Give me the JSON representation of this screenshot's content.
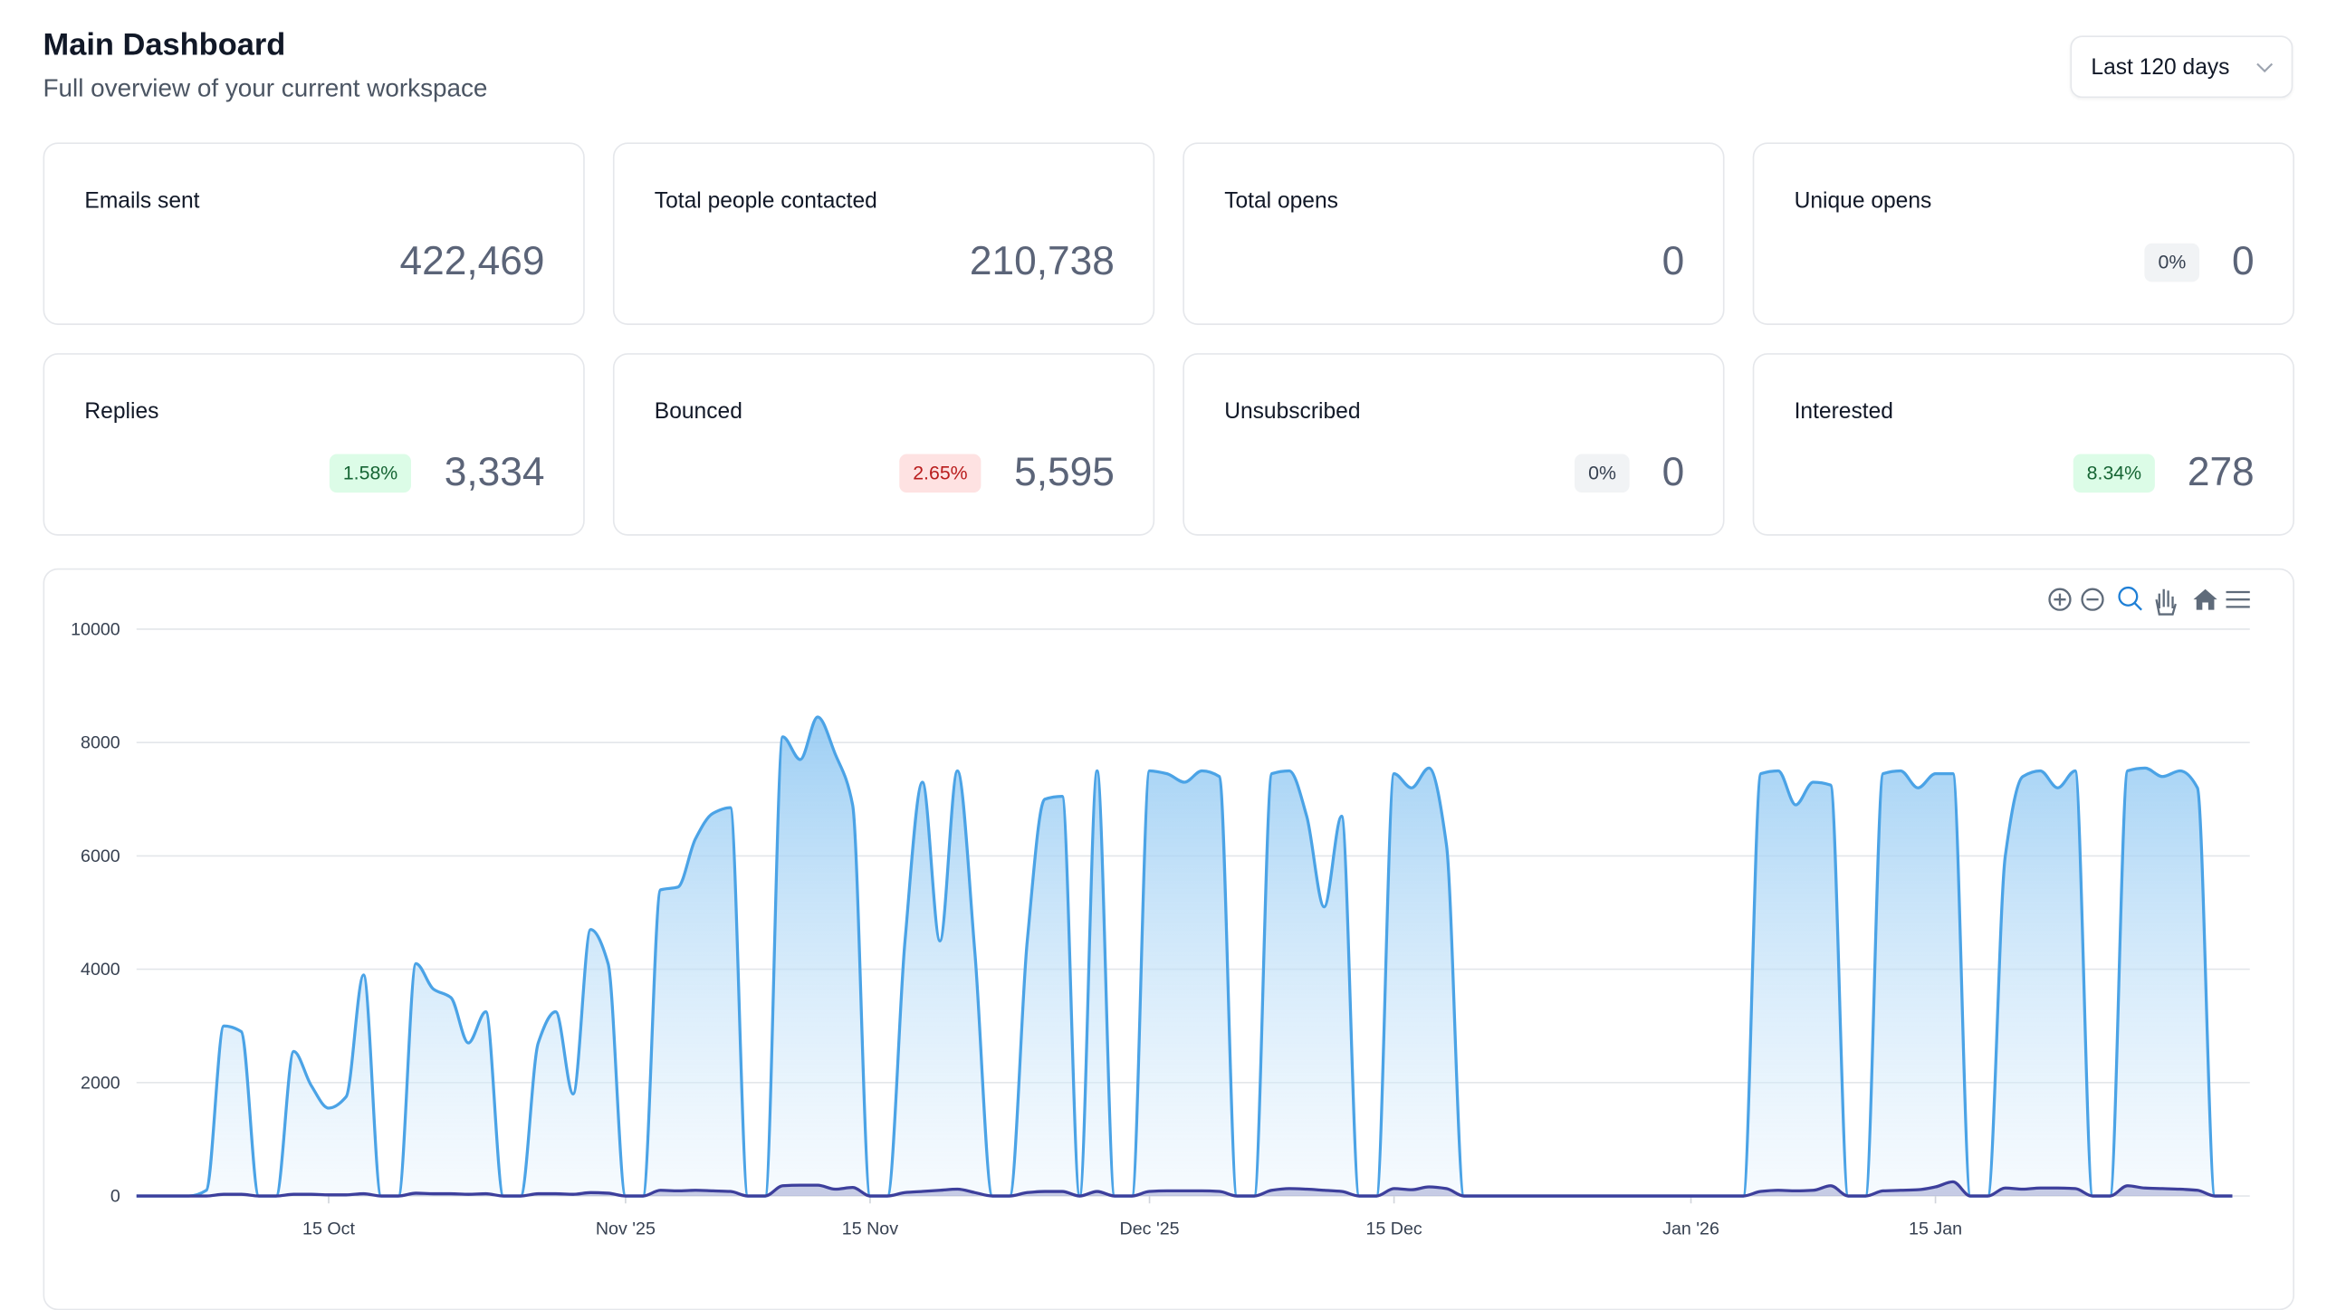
{
  "header": {
    "title": "Main Dashboard",
    "subtitle": "Full overview of your current workspace",
    "range_select": "Last 120 days"
  },
  "cards": [
    {
      "label": "Emails sent",
      "value": "422,469"
    },
    {
      "label": "Total people contacted",
      "value": "210,738"
    },
    {
      "label": "Total opens",
      "value": "0"
    },
    {
      "label": "Unique opens",
      "value": "0",
      "badge": "0%",
      "badge_color": "gray"
    },
    {
      "label": "Replies",
      "value": "3,334",
      "badge": "1.58%",
      "badge_color": "green"
    },
    {
      "label": "Bounced",
      "value": "5,595",
      "badge": "2.65%",
      "badge_color": "red"
    },
    {
      "label": "Unsubscribed",
      "value": "0",
      "badge": "0%",
      "badge_color": "gray"
    },
    {
      "label": "Interested",
      "value": "278",
      "badge": "8.34%",
      "badge_color": "green"
    }
  ],
  "chart_data": {
    "type": "area",
    "x": [
      "2025-10-04",
      "2025-10-05",
      "2025-10-06",
      "2025-10-07",
      "2025-10-08",
      "2025-10-09",
      "2025-10-10",
      "2025-10-11",
      "2025-10-12",
      "2025-10-13",
      "2025-10-14",
      "2025-10-15",
      "2025-10-16",
      "2025-10-17",
      "2025-10-18",
      "2025-10-19",
      "2025-10-20",
      "2025-10-21",
      "2025-10-22",
      "2025-10-23",
      "2025-10-24",
      "2025-10-25",
      "2025-10-26",
      "2025-10-27",
      "2025-10-28",
      "2025-10-29",
      "2025-10-30",
      "2025-10-31",
      "2025-11-01",
      "2025-11-02",
      "2025-11-03",
      "2025-11-04",
      "2025-11-05",
      "2025-11-06",
      "2025-11-07",
      "2025-11-08",
      "2025-11-09",
      "2025-11-10",
      "2025-11-11",
      "2025-11-12",
      "2025-11-13",
      "2025-11-14",
      "2025-11-15",
      "2025-11-16",
      "2025-11-17",
      "2025-11-18",
      "2025-11-19",
      "2025-11-20",
      "2025-11-21",
      "2025-11-22",
      "2025-11-23",
      "2025-11-24",
      "2025-11-25",
      "2025-11-26",
      "2025-11-27",
      "2025-11-28",
      "2025-11-29",
      "2025-11-30",
      "2025-12-01",
      "2025-12-02",
      "2025-12-03",
      "2025-12-04",
      "2025-12-05",
      "2025-12-06",
      "2025-12-07",
      "2025-12-08",
      "2025-12-09",
      "2025-12-10",
      "2025-12-11",
      "2025-12-12",
      "2025-12-13",
      "2025-12-14",
      "2025-12-15",
      "2025-12-16",
      "2025-12-17",
      "2025-12-18",
      "2025-12-19",
      "2025-12-20",
      "2025-12-21",
      "2025-12-22",
      "2025-12-23",
      "2025-12-24",
      "2025-12-25",
      "2025-12-26",
      "2025-12-27",
      "2025-12-28",
      "2025-12-29",
      "2025-12-30",
      "2025-12-31",
      "2026-01-01",
      "2026-01-02",
      "2026-01-03",
      "2026-01-04",
      "2026-01-05",
      "2026-01-06",
      "2026-01-07",
      "2026-01-08",
      "2026-01-09",
      "2026-01-10",
      "2026-01-11",
      "2026-01-12",
      "2026-01-13",
      "2026-01-14",
      "2026-01-15",
      "2026-01-16",
      "2026-01-17",
      "2026-01-18",
      "2026-01-19",
      "2026-01-20",
      "2026-01-21",
      "2026-01-22",
      "2026-01-23",
      "2026-01-24",
      "2026-01-25",
      "2026-01-26",
      "2026-01-27",
      "2026-01-28",
      "2026-01-29",
      "2026-01-30",
      "2026-01-31",
      "2026-02-01"
    ],
    "series": [
      {
        "color": "#4ba3e6",
        "values": [
          0,
          0,
          0,
          0,
          100,
          3000,
          2900,
          0,
          0,
          2550,
          1950,
          1550,
          1750,
          3900,
          0,
          0,
          4100,
          3650,
          3500,
          2700,
          3250,
          0,
          0,
          2700,
          3250,
          1800,
          4700,
          4100,
          0,
          0,
          5400,
          5450,
          6300,
          6750,
          6850,
          0,
          0,
          8100,
          7700,
          8450,
          7800,
          6900,
          0,
          0,
          4500,
          7300,
          4500,
          7500,
          4300,
          0,
          0,
          4500,
          7000,
          7050,
          0,
          7500,
          0,
          0,
          7500,
          7450,
          7300,
          7500,
          7400,
          0,
          0,
          7450,
          7500,
          6700,
          5100,
          6700,
          0,
          0,
          7450,
          7200,
          7550,
          6200,
          0,
          0,
          0,
          0,
          0,
          0,
          0,
          0,
          0,
          0,
          0,
          0,
          0,
          0,
          0,
          0,
          0,
          7450,
          7500,
          6900,
          7300,
          7250,
          0,
          0,
          7450,
          7500,
          7200,
          7450,
          7450,
          0,
          0,
          6000,
          7400,
          7500,
          7200,
          7500,
          0,
          0,
          7500,
          7550,
          7400,
          7500,
          7200,
          0,
          0
        ]
      },
      {
        "color": "#3d3f9c",
        "values": [
          0,
          0,
          0,
          0,
          0,
          30,
          30,
          0,
          0,
          30,
          30,
          20,
          20,
          40,
          0,
          0,
          50,
          40,
          40,
          30,
          40,
          0,
          0,
          40,
          40,
          30,
          60,
          50,
          0,
          0,
          100,
          90,
          100,
          90,
          80,
          0,
          0,
          180,
          190,
          190,
          120,
          150,
          0,
          0,
          60,
          80,
          100,
          120,
          60,
          0,
          0,
          60,
          80,
          80,
          0,
          80,
          0,
          0,
          80,
          90,
          90,
          90,
          80,
          0,
          0,
          100,
          130,
          120,
          100,
          80,
          0,
          0,
          130,
          110,
          160,
          130,
          0,
          0,
          0,
          0,
          0,
          0,
          0,
          0,
          0,
          0,
          0,
          0,
          0,
          0,
          0,
          0,
          0,
          80,
          100,
          90,
          100,
          180,
          0,
          0,
          90,
          100,
          110,
          160,
          250,
          0,
          0,
          140,
          120,
          140,
          140,
          130,
          0,
          0,
          180,
          140,
          130,
          120,
          100,
          0,
          0
        ]
      }
    ],
    "xlim": [
      "2025-10-04",
      "2026-02-02"
    ],
    "xticks": [
      {
        "value": "2025-10-15",
        "label": "15 Oct"
      },
      {
        "value": "2025-11-01",
        "label": "Nov '25"
      },
      {
        "value": "2025-11-15",
        "label": "15 Nov"
      },
      {
        "value": "2025-12-01",
        "label": "Dec '25"
      },
      {
        "value": "2025-12-15",
        "label": "15 Dec"
      },
      {
        "value": "2026-01-01",
        "label": "Jan '26"
      },
      {
        "value": "2026-01-15",
        "label": "15 Jan"
      }
    ],
    "ylim": [
      0,
      10000
    ],
    "yticks": [
      0,
      2000,
      4000,
      6000,
      8000,
      10000
    ],
    "grid": true
  }
}
